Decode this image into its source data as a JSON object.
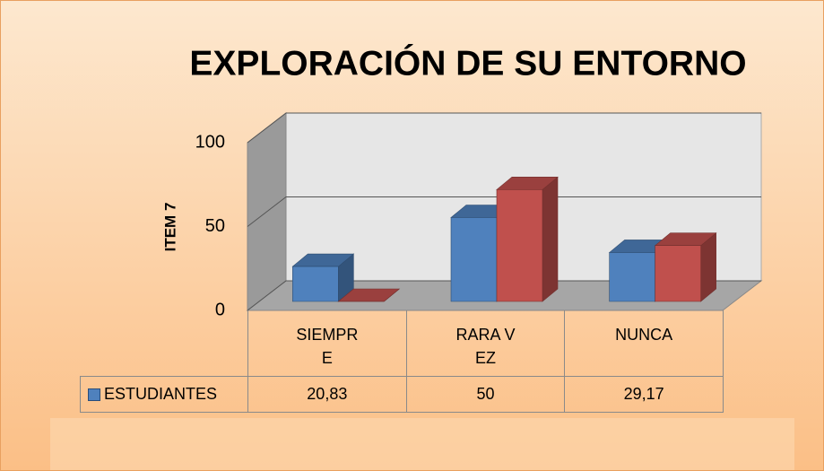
{
  "chart_data": {
    "type": "bar3d",
    "title": "EXPLORACIÓN DE SU ENTORNO",
    "y_label": "ITEM 7",
    "categories": [
      "SIEMPRE",
      "RARA VEZ",
      "NUNCA"
    ],
    "series": [
      {
        "name": "ESTUDIANTES",
        "color": "#4f81bd",
        "values": [
          20.83,
          50,
          29.17
        ],
        "value_labels": [
          "20,83",
          "50",
          "29,17"
        ]
      },
      {
        "color": "#c0504d",
        "values": [
          0,
          66.67,
          33.33
        ]
      }
    ],
    "ylim": [
      0,
      100
    ],
    "yticks": [
      0,
      50,
      100
    ],
    "grid": true
  }
}
